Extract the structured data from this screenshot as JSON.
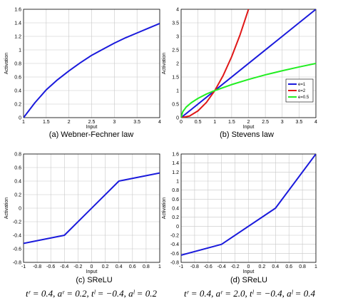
{
  "chart_data": [
    {
      "type": "line",
      "caption": "(a) Webner-Fechner law",
      "xlabel": "Input",
      "ylabel": "Activation",
      "xlim": [
        1,
        4
      ],
      "ylim": [
        0,
        1.6
      ],
      "xticks": [
        1,
        1.5,
        2,
        2.5,
        3,
        3.5,
        4
      ],
      "yticks": [
        0,
        0.2,
        0.4,
        0.6,
        0.8,
        1,
        1.2,
        1.4,
        1.6
      ],
      "grid": true,
      "series": [
        {
          "color": "#1a1adc",
          "x": [
            1,
            1.25,
            1.5,
            1.75,
            2,
            2.25,
            2.5,
            2.75,
            3,
            3.25,
            3.5,
            3.75,
            4
          ],
          "y": [
            0,
            0.22,
            0.41,
            0.56,
            0.69,
            0.81,
            0.92,
            1.01,
            1.1,
            1.18,
            1.25,
            1.32,
            1.39
          ]
        }
      ]
    },
    {
      "type": "line",
      "caption": "(b) Stevens law",
      "xlabel": "Input",
      "ylabel": "Activation",
      "xlim": [
        0,
        4
      ],
      "ylim": [
        0,
        4
      ],
      "xticks": [
        0,
        0.5,
        1,
        1.5,
        2,
        2.5,
        3,
        3.5,
        4
      ],
      "yticks": [
        0,
        0.5,
        1,
        1.5,
        2,
        2.5,
        3,
        3.5,
        4
      ],
      "grid": true,
      "legend": "right",
      "series": [
        {
          "name": "e=1",
          "color": "#1a1adc",
          "x": [
            0,
            4
          ],
          "y": [
            0,
            4
          ]
        },
        {
          "name": "e=2",
          "color": "#e01818",
          "x": [
            0,
            0.25,
            0.5,
            0.75,
            1,
            1.25,
            1.5,
            1.75,
            2
          ],
          "y": [
            0,
            0.06,
            0.25,
            0.56,
            1,
            1.56,
            2.25,
            3.06,
            4
          ]
        },
        {
          "name": "e=0.5",
          "color": "#22ee22",
          "x": [
            0,
            0.05,
            0.15,
            0.3,
            0.5,
            0.75,
            1,
            1.5,
            2,
            2.5,
            3,
            3.5,
            4
          ],
          "y": [
            0,
            0.22,
            0.39,
            0.55,
            0.71,
            0.87,
            1,
            1.22,
            1.41,
            1.58,
            1.73,
            1.87,
            2
          ]
        }
      ]
    },
    {
      "type": "line",
      "caption": "(c) SReLU",
      "formula": "tʳ = 0.4, aʳ = 0.2, tˡ = −0.4, aˡ = 0.2",
      "xlabel": "Input",
      "ylabel": "Activation",
      "xlim": [
        -1,
        1
      ],
      "ylim": [
        -0.8,
        0.8
      ],
      "xticks": [
        -1,
        -0.8,
        -0.6,
        -0.4,
        -0.2,
        0,
        0.2,
        0.4,
        0.6,
        0.8,
        1
      ],
      "yticks": [
        -0.8,
        -0.6,
        -0.4,
        -0.2,
        0,
        0.2,
        0.4,
        0.6,
        0.8
      ],
      "grid": true,
      "series": [
        {
          "color": "#1a1adc",
          "x": [
            -1,
            -0.4,
            0.4,
            1
          ],
          "y": [
            -0.52,
            -0.4,
            0.4,
            0.52
          ]
        }
      ]
    },
    {
      "type": "line",
      "caption": "(d) SReLU",
      "formula": "tʳ = 0.4, aʳ = 2.0, tˡ = −0.4, aˡ = 0.4",
      "xlabel": "Input",
      "ylabel": "Activation",
      "xlim": [
        -1,
        1
      ],
      "ylim": [
        -0.8,
        1.6
      ],
      "xticks": [
        -1,
        -0.8,
        -0.6,
        -0.4,
        -0.2,
        0,
        0.2,
        0.4,
        0.6,
        0.8,
        1
      ],
      "yticks": [
        -0.8,
        -0.6,
        -0.4,
        -0.2,
        0,
        0.2,
        0.4,
        0.6,
        0.8,
        1,
        1.2,
        1.4,
        1.6
      ],
      "grid": true,
      "series": [
        {
          "color": "#1a1adc",
          "x": [
            -1,
            -0.4,
            0.4,
            1
          ],
          "y": [
            -0.64,
            -0.4,
            0.4,
            1.6
          ]
        }
      ]
    }
  ]
}
